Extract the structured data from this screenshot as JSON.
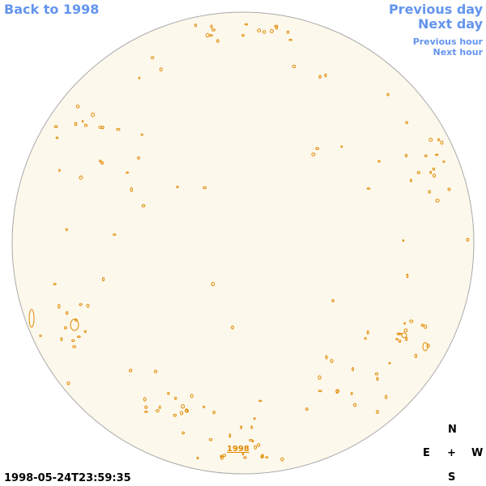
{
  "nav": {
    "back": "Back to 1998",
    "previous_day": "Previous day",
    "next_day": "Next day",
    "previous_hour": "Previous hour",
    "next_hour": "Next hour"
  },
  "image": {
    "year_link": "1998",
    "timestamp": "1998-05-24T23:59:35"
  },
  "compass": {
    "north": "N",
    "east": "E",
    "center": "+",
    "west": "W",
    "south": "S"
  }
}
